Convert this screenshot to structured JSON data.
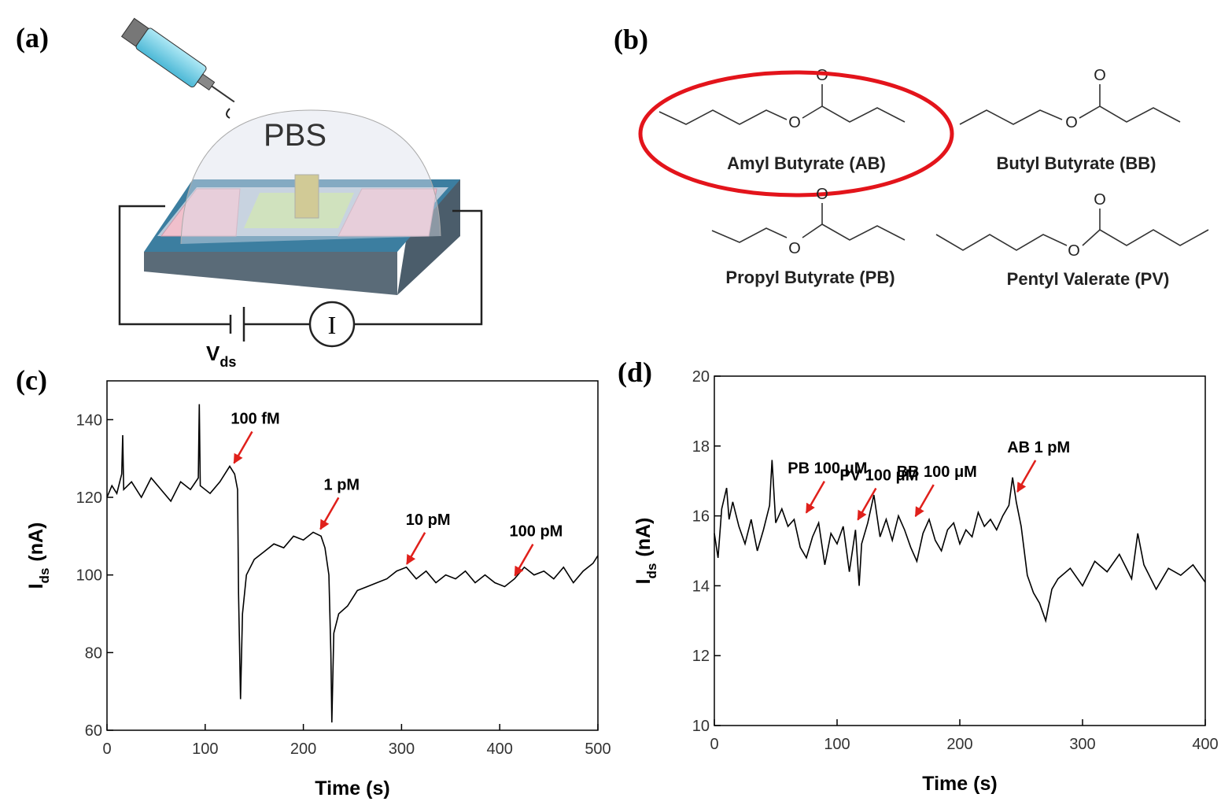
{
  "panels": {
    "a": {
      "letter": "(a)",
      "dome_label": "PBS",
      "meter_label": "I",
      "voltage_label": "V",
      "voltage_sub": "ds"
    },
    "b": {
      "letter": "(b)",
      "molecules": [
        {
          "name": "Amyl Butyrate (AB)",
          "atoms": [
            "O",
            "O"
          ]
        },
        {
          "name": "Butyl Butyrate (BB)",
          "atoms": [
            "O",
            "O"
          ]
        },
        {
          "name": "Propyl Butyrate (PB)",
          "atoms": [
            "O",
            "O"
          ]
        },
        {
          "name": "Pentyl Valerate (PV)",
          "atoms": [
            "O",
            "O"
          ]
        }
      ]
    }
  },
  "chart_data": [
    {
      "type": "line",
      "letter": "(c)",
      "xlabel": "Time (s)",
      "ylabel": "I",
      "ylabel_sub": "ds",
      "ylabel_unit": "(nA)",
      "xlim": [
        0,
        500
      ],
      "ylim": [
        60,
        150
      ],
      "xticks": [
        0,
        100,
        200,
        300,
        400,
        500
      ],
      "yticks": [
        60,
        80,
        100,
        120,
        140
      ],
      "x": [
        0,
        5,
        10,
        15,
        16,
        17,
        25,
        35,
        45,
        55,
        65,
        75,
        85,
        93,
        94,
        95,
        105,
        115,
        125,
        130,
        133,
        134,
        136,
        138,
        142,
        150,
        160,
        170,
        180,
        190,
        200,
        210,
        218,
        222,
        226,
        228,
        229,
        231,
        236,
        245,
        255,
        265,
        275,
        285,
        295,
        305,
        315,
        325,
        335,
        345,
        355,
        365,
        375,
        385,
        395,
        405,
        415,
        425,
        435,
        445,
        455,
        465,
        475,
        485,
        495,
        500
      ],
      "series": [
        {
          "color": "#000000",
          "values": [
            120,
            123,
            121,
            126,
            136,
            122,
            124,
            120,
            125,
            122,
            119,
            124,
            122,
            125,
            144,
            123,
            121,
            124,
            128,
            126,
            122,
            95,
            68,
            90,
            100,
            104,
            106,
            108,
            107,
            110,
            109,
            111,
            110,
            107,
            100,
            80,
            62,
            85,
            90,
            92,
            96,
            97,
            98,
            99,
            101,
            102,
            99,
            101,
            98,
            100,
            99,
            101,
            98,
            100,
            98,
            97,
            99,
            102,
            100,
            101,
            99,
            102,
            98,
            101,
            103,
            105
          ]
        }
      ],
      "annotation_color": "#e0201b",
      "annotations": [
        {
          "text": "100 fM",
          "x": 127,
          "y": 128
        },
        {
          "text": "1 pM",
          "x": 215,
          "y": 111
        },
        {
          "text": "10 pM",
          "x": 303,
          "y": 102
        },
        {
          "text": "100 pM",
          "x": 413,
          "y": 99
        }
      ]
    },
    {
      "type": "line",
      "letter": "(d)",
      "xlabel": "Time (s)",
      "ylabel": "I",
      "ylabel_sub": "ds",
      "ylabel_unit": "(nA)",
      "xlim": [
        0,
        400
      ],
      "ylim": [
        10,
        20
      ],
      "xticks": [
        0,
        100,
        200,
        300,
        400
      ],
      "yticks": [
        10,
        12,
        14,
        16,
        18,
        20
      ],
      "x": [
        0,
        3,
        6,
        10,
        12,
        15,
        20,
        25,
        30,
        35,
        40,
        45,
        47,
        50,
        55,
        60,
        65,
        70,
        75,
        80,
        85,
        90,
        95,
        100,
        105,
        110,
        115,
        118,
        120,
        125,
        130,
        135,
        140,
        145,
        150,
        155,
        160,
        165,
        170,
        175,
        180,
        185,
        190,
        195,
        200,
        205,
        210,
        215,
        220,
        225,
        230,
        235,
        240,
        243,
        246,
        250,
        255,
        260,
        265,
        270,
        275,
        280,
        290,
        300,
        310,
        320,
        330,
        340,
        345,
        350,
        360,
        370,
        380,
        390,
        400
      ],
      "series": [
        {
          "color": "#000000",
          "values": [
            15.5,
            14.8,
            16.2,
            16.8,
            15.9,
            16.4,
            15.7,
            15.2,
            15.9,
            15.0,
            15.6,
            16.3,
            17.6,
            15.8,
            16.2,
            15.7,
            15.9,
            15.1,
            14.8,
            15.4,
            15.8,
            14.6,
            15.5,
            15.2,
            15.7,
            14.4,
            15.6,
            14.0,
            15.2,
            15.8,
            16.6,
            15.4,
            15.9,
            15.3,
            16.0,
            15.6,
            15.1,
            14.7,
            15.5,
            15.9,
            15.3,
            15.0,
            15.6,
            15.8,
            15.2,
            15.6,
            15.4,
            16.1,
            15.7,
            15.9,
            15.6,
            16.0,
            16.3,
            17.1,
            16.4,
            15.7,
            14.3,
            13.8,
            13.5,
            13.0,
            13.9,
            14.2,
            14.5,
            14.0,
            14.7,
            14.4,
            14.9,
            14.2,
            15.5,
            14.6,
            13.9,
            14.5,
            14.3,
            14.6,
            14.1
          ]
        }
      ],
      "annotation_color": "#e0201b",
      "annotations": [
        {
          "text": "PB 100 μM",
          "x": 73,
          "y": 16
        },
        {
          "text": "PV 100 μM",
          "x": 115,
          "y": 15.8
        },
        {
          "text": "BB 100 μM",
          "x": 162,
          "y": 15.9
        },
        {
          "text": "AB 1 pM",
          "x": 245,
          "y": 16.6
        }
      ]
    }
  ]
}
